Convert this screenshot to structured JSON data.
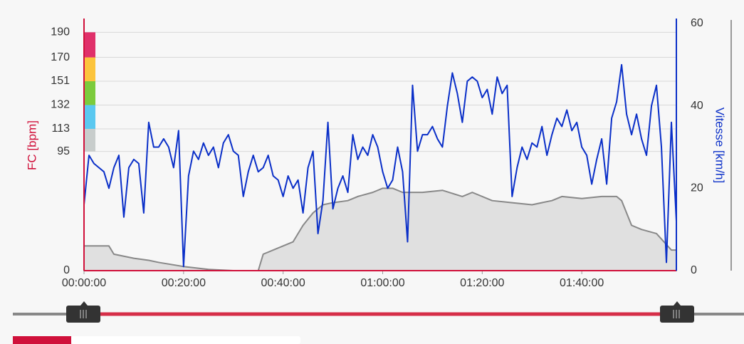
{
  "chart_data": {
    "type": "line",
    "ylabel": "FC [bpm]",
    "y2label": "Vitesse [km/h]",
    "ylim": [
      0,
      197
    ],
    "yticks": [
      0,
      95,
      113,
      132,
      151,
      170,
      190
    ],
    "y2lim": [
      0,
      60
    ],
    "y2ticks": [
      0,
      20,
      40,
      60
    ],
    "zone_colors": [
      "#c8cdcc",
      "#5ac8f0",
      "#7ccb3c",
      "#fcc43c",
      "#e0306a"
    ],
    "grid": true,
    "xlim": [
      0,
      119
    ],
    "xticks": [
      {
        "value": 0,
        "label": "00:00:00"
      },
      {
        "value": 20,
        "label": "00:20:00"
      },
      {
        "value": 40,
        "label": "00:40:00"
      },
      {
        "value": 60,
        "label": "01:00:00"
      },
      {
        "value": 80,
        "label": "01:20:00"
      },
      {
        "value": 100,
        "label": "01:40:00"
      }
    ],
    "x": [
      0,
      1,
      2,
      3,
      4,
      5,
      6,
      7,
      8,
      9,
      10,
      11,
      12,
      13,
      14,
      15,
      16,
      17,
      18,
      19,
      20,
      21,
      22,
      23,
      24,
      25,
      26,
      27,
      28,
      29,
      30,
      31,
      32,
      33,
      34,
      35,
      36,
      37,
      38,
      39,
      40,
      41,
      42,
      43,
      44,
      45,
      46,
      47,
      48,
      49,
      50,
      51,
      52,
      53,
      54,
      55,
      56,
      57,
      58,
      59,
      60,
      61,
      62,
      63,
      64,
      65,
      66,
      67,
      68,
      69,
      70,
      71,
      72,
      73,
      74,
      75,
      76,
      77,
      78,
      79,
      80,
      81,
      82,
      83,
      84,
      85,
      86,
      87,
      88,
      89,
      90,
      91,
      92,
      93,
      94,
      95,
      96,
      97,
      98,
      99,
      100,
      101,
      102,
      103,
      104,
      105,
      106,
      107,
      108,
      109,
      110,
      111,
      112,
      113,
      114,
      115,
      116,
      117,
      118,
      119
    ],
    "series": [
      {
        "color": "#0a2fc8",
        "axis": "y2",
        "values": [
          16,
          28,
          26,
          25,
          24,
          20,
          25,
          28,
          13,
          25,
          27,
          26,
          14,
          36,
          30,
          30,
          32,
          30,
          25,
          34,
          1,
          23,
          29,
          27,
          31,
          28,
          30,
          25,
          31,
          33,
          29,
          28,
          18,
          24,
          28,
          24,
          25,
          28,
          23,
          22,
          18,
          23,
          20,
          22,
          14,
          25,
          29,
          9,
          17,
          36,
          15,
          20,
          23,
          19,
          33,
          27,
          30,
          28,
          33,
          30,
          24,
          20,
          22,
          30,
          24,
          7,
          45,
          29,
          33,
          33,
          35,
          32,
          30,
          40,
          48,
          43,
          36,
          46,
          47,
          46,
          42,
          44,
          38,
          47,
          43,
          45,
          18,
          25,
          30,
          27,
          31,
          30,
          35,
          28,
          33,
          37,
          35,
          39,
          34,
          36,
          30,
          28,
          21,
          27,
          32,
          21,
          37,
          41,
          50,
          38,
          33,
          38,
          32,
          28,
          40,
          45,
          30,
          2,
          36,
          12
        ]
      },
      {
        "color": "#888888",
        "fill": "#e0e0e0",
        "axis": "y2",
        "x": [
          0,
          5,
          6,
          10,
          13,
          15,
          20,
          25,
          30,
          33,
          35,
          36,
          40,
          42,
          44,
          46,
          48,
          50,
          53,
          55,
          58,
          60,
          62,
          64,
          68,
          72,
          76,
          78,
          82,
          86,
          90,
          94,
          96,
          100,
          104,
          107,
          108,
          109,
          110,
          112,
          115,
          118,
          119
        ],
        "values": [
          6,
          6,
          4,
          3,
          2.5,
          2,
          1,
          0.3,
          0,
          0,
          0,
          4,
          6,
          7,
          11,
          14,
          16,
          16.5,
          17,
          18,
          19,
          20,
          20,
          19,
          19,
          19.5,
          18,
          19,
          17,
          16.5,
          16,
          17,
          18,
          17.5,
          18,
          18,
          17,
          14,
          11,
          10,
          9,
          5,
          5
        ]
      }
    ]
  }
}
